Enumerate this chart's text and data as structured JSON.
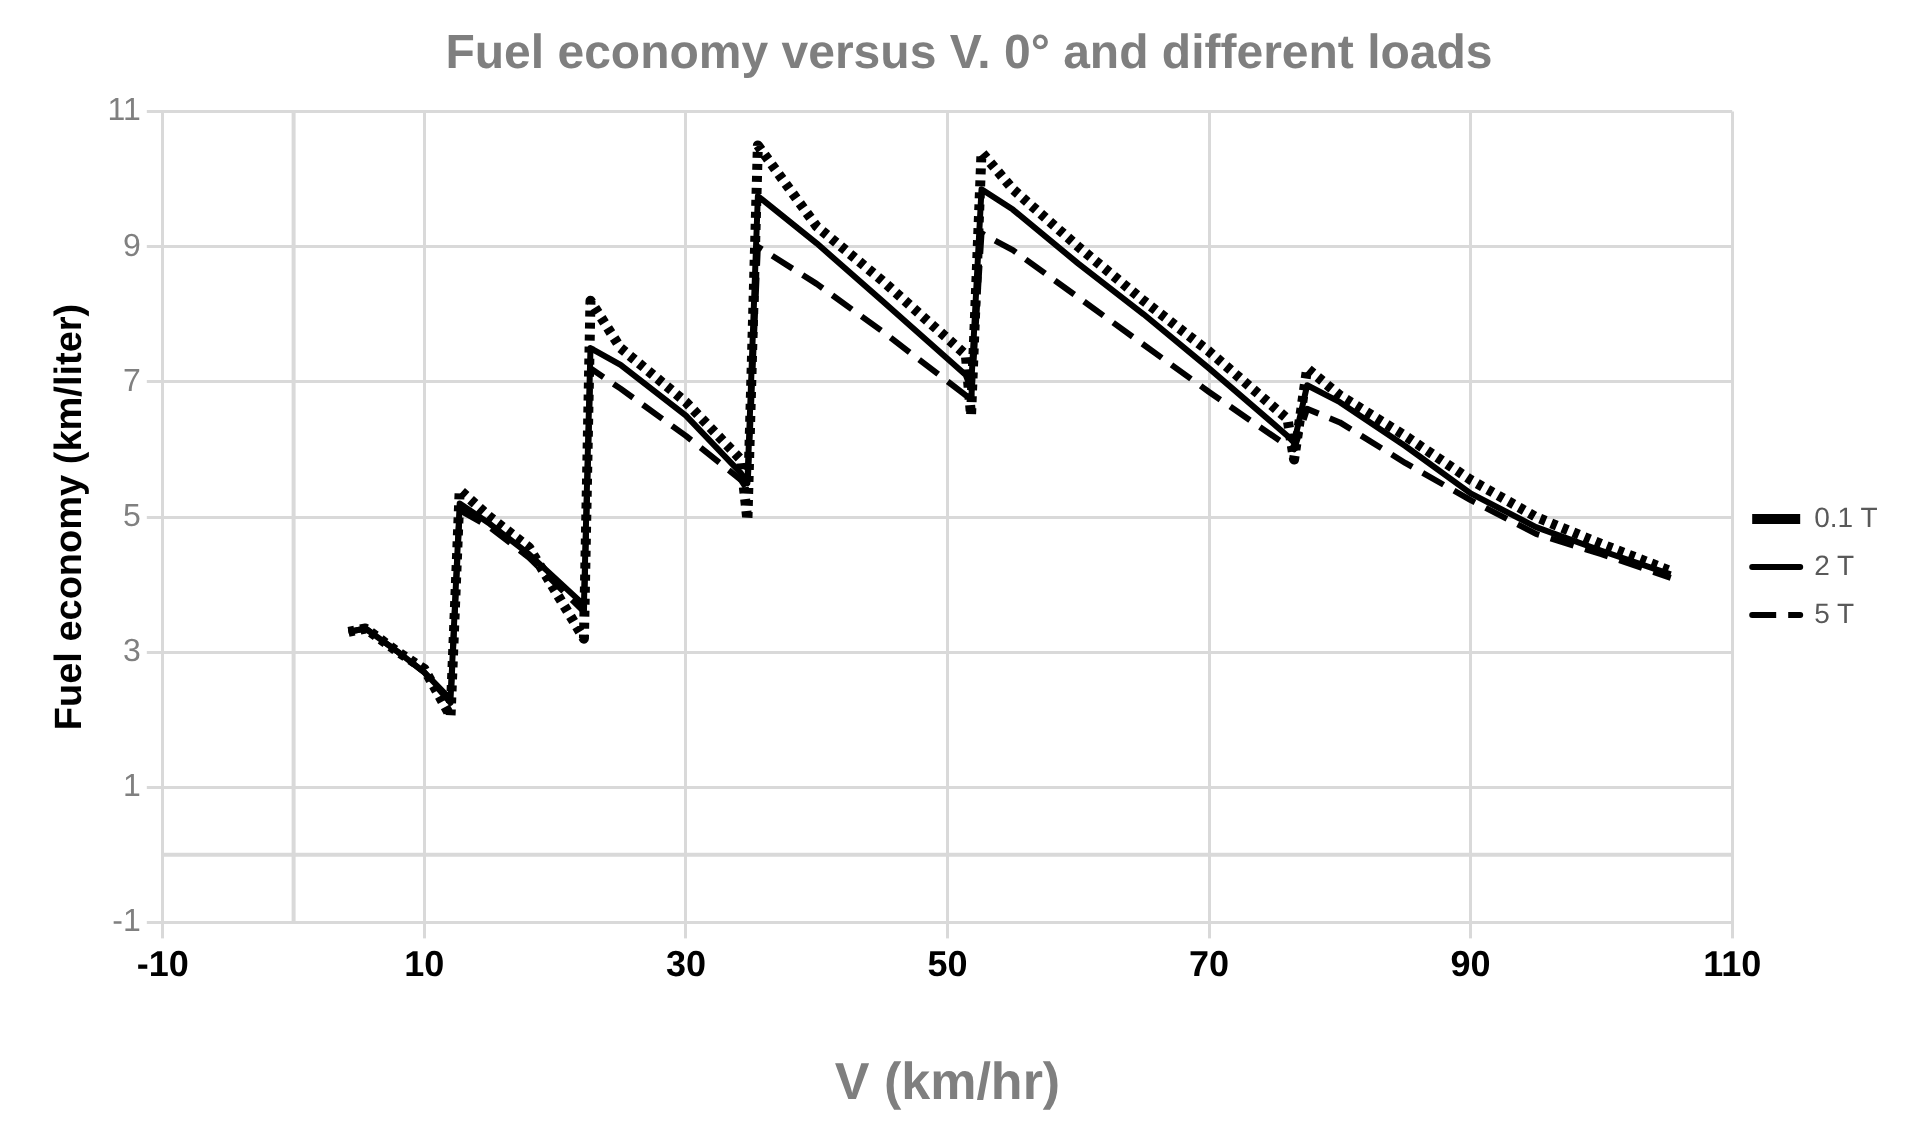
{
  "chart_data": {
    "type": "line",
    "title": "Fuel economy versus V. 0° and different loads",
    "xlabel": "V (km/hr)",
    "ylabel": "Fuel economy (km/liter)",
    "x": [
      4.2,
      5.5,
      8,
      10,
      12,
      12.7,
      15,
      18,
      22.2,
      22.7,
      25,
      30,
      34.2,
      34.7,
      35.5,
      40,
      45,
      51.4,
      51.8,
      52.6,
      55,
      60,
      65,
      70,
      76,
      76.5,
      77.5,
      80,
      85,
      90,
      95,
      100,
      105.3
    ],
    "series": [
      {
        "name": "0.1 T",
        "color": "#000000",
        "line_style": "dotted",
        "values": [
          3.3,
          3.35,
          3.0,
          2.75,
          2.05,
          5.4,
          5.0,
          4.55,
          3.2,
          8.2,
          7.5,
          6.7,
          5.85,
          4.95,
          10.5,
          9.3,
          8.5,
          7.4,
          6.5,
          10.4,
          9.85,
          9.0,
          8.2,
          7.45,
          6.45,
          5.85,
          7.2,
          6.8,
          6.2,
          5.55,
          5.0,
          4.6,
          4.2
        ]
      },
      {
        "name": "2 T",
        "color": "#000000",
        "line_style": "solid",
        "values": [
          3.3,
          3.35,
          3.0,
          2.7,
          2.3,
          5.2,
          4.9,
          4.45,
          3.7,
          7.5,
          7.25,
          6.5,
          5.65,
          5.5,
          9.75,
          9.05,
          8.2,
          7.1,
          6.9,
          9.85,
          9.55,
          8.75,
          8.0,
          7.2,
          6.2,
          6.1,
          6.95,
          6.7,
          6.05,
          5.35,
          4.85,
          4.5,
          4.15
        ]
      },
      {
        "name": "5 T",
        "color": "#000000",
        "line_style": "dashed",
        "values": [
          3.3,
          3.35,
          3.0,
          2.7,
          2.25,
          5.1,
          4.85,
          4.4,
          3.6,
          7.2,
          6.9,
          6.2,
          5.55,
          5.4,
          9.0,
          8.45,
          7.75,
          6.8,
          6.7,
          9.2,
          8.95,
          8.25,
          7.55,
          6.85,
          6.05,
          6.0,
          6.6,
          6.4,
          5.8,
          5.25,
          4.75,
          4.45,
          4.1
        ]
      }
    ],
    "xlim": [
      -10,
      110
    ],
    "xticks": [
      -10,
      10,
      30,
      50,
      70,
      90,
      110
    ],
    "ylim": [
      -1,
      11
    ],
    "yticks": [
      -1,
      1,
      3,
      5,
      7,
      9,
      11
    ],
    "grid": true,
    "legend": "right",
    "marker": "none"
  }
}
